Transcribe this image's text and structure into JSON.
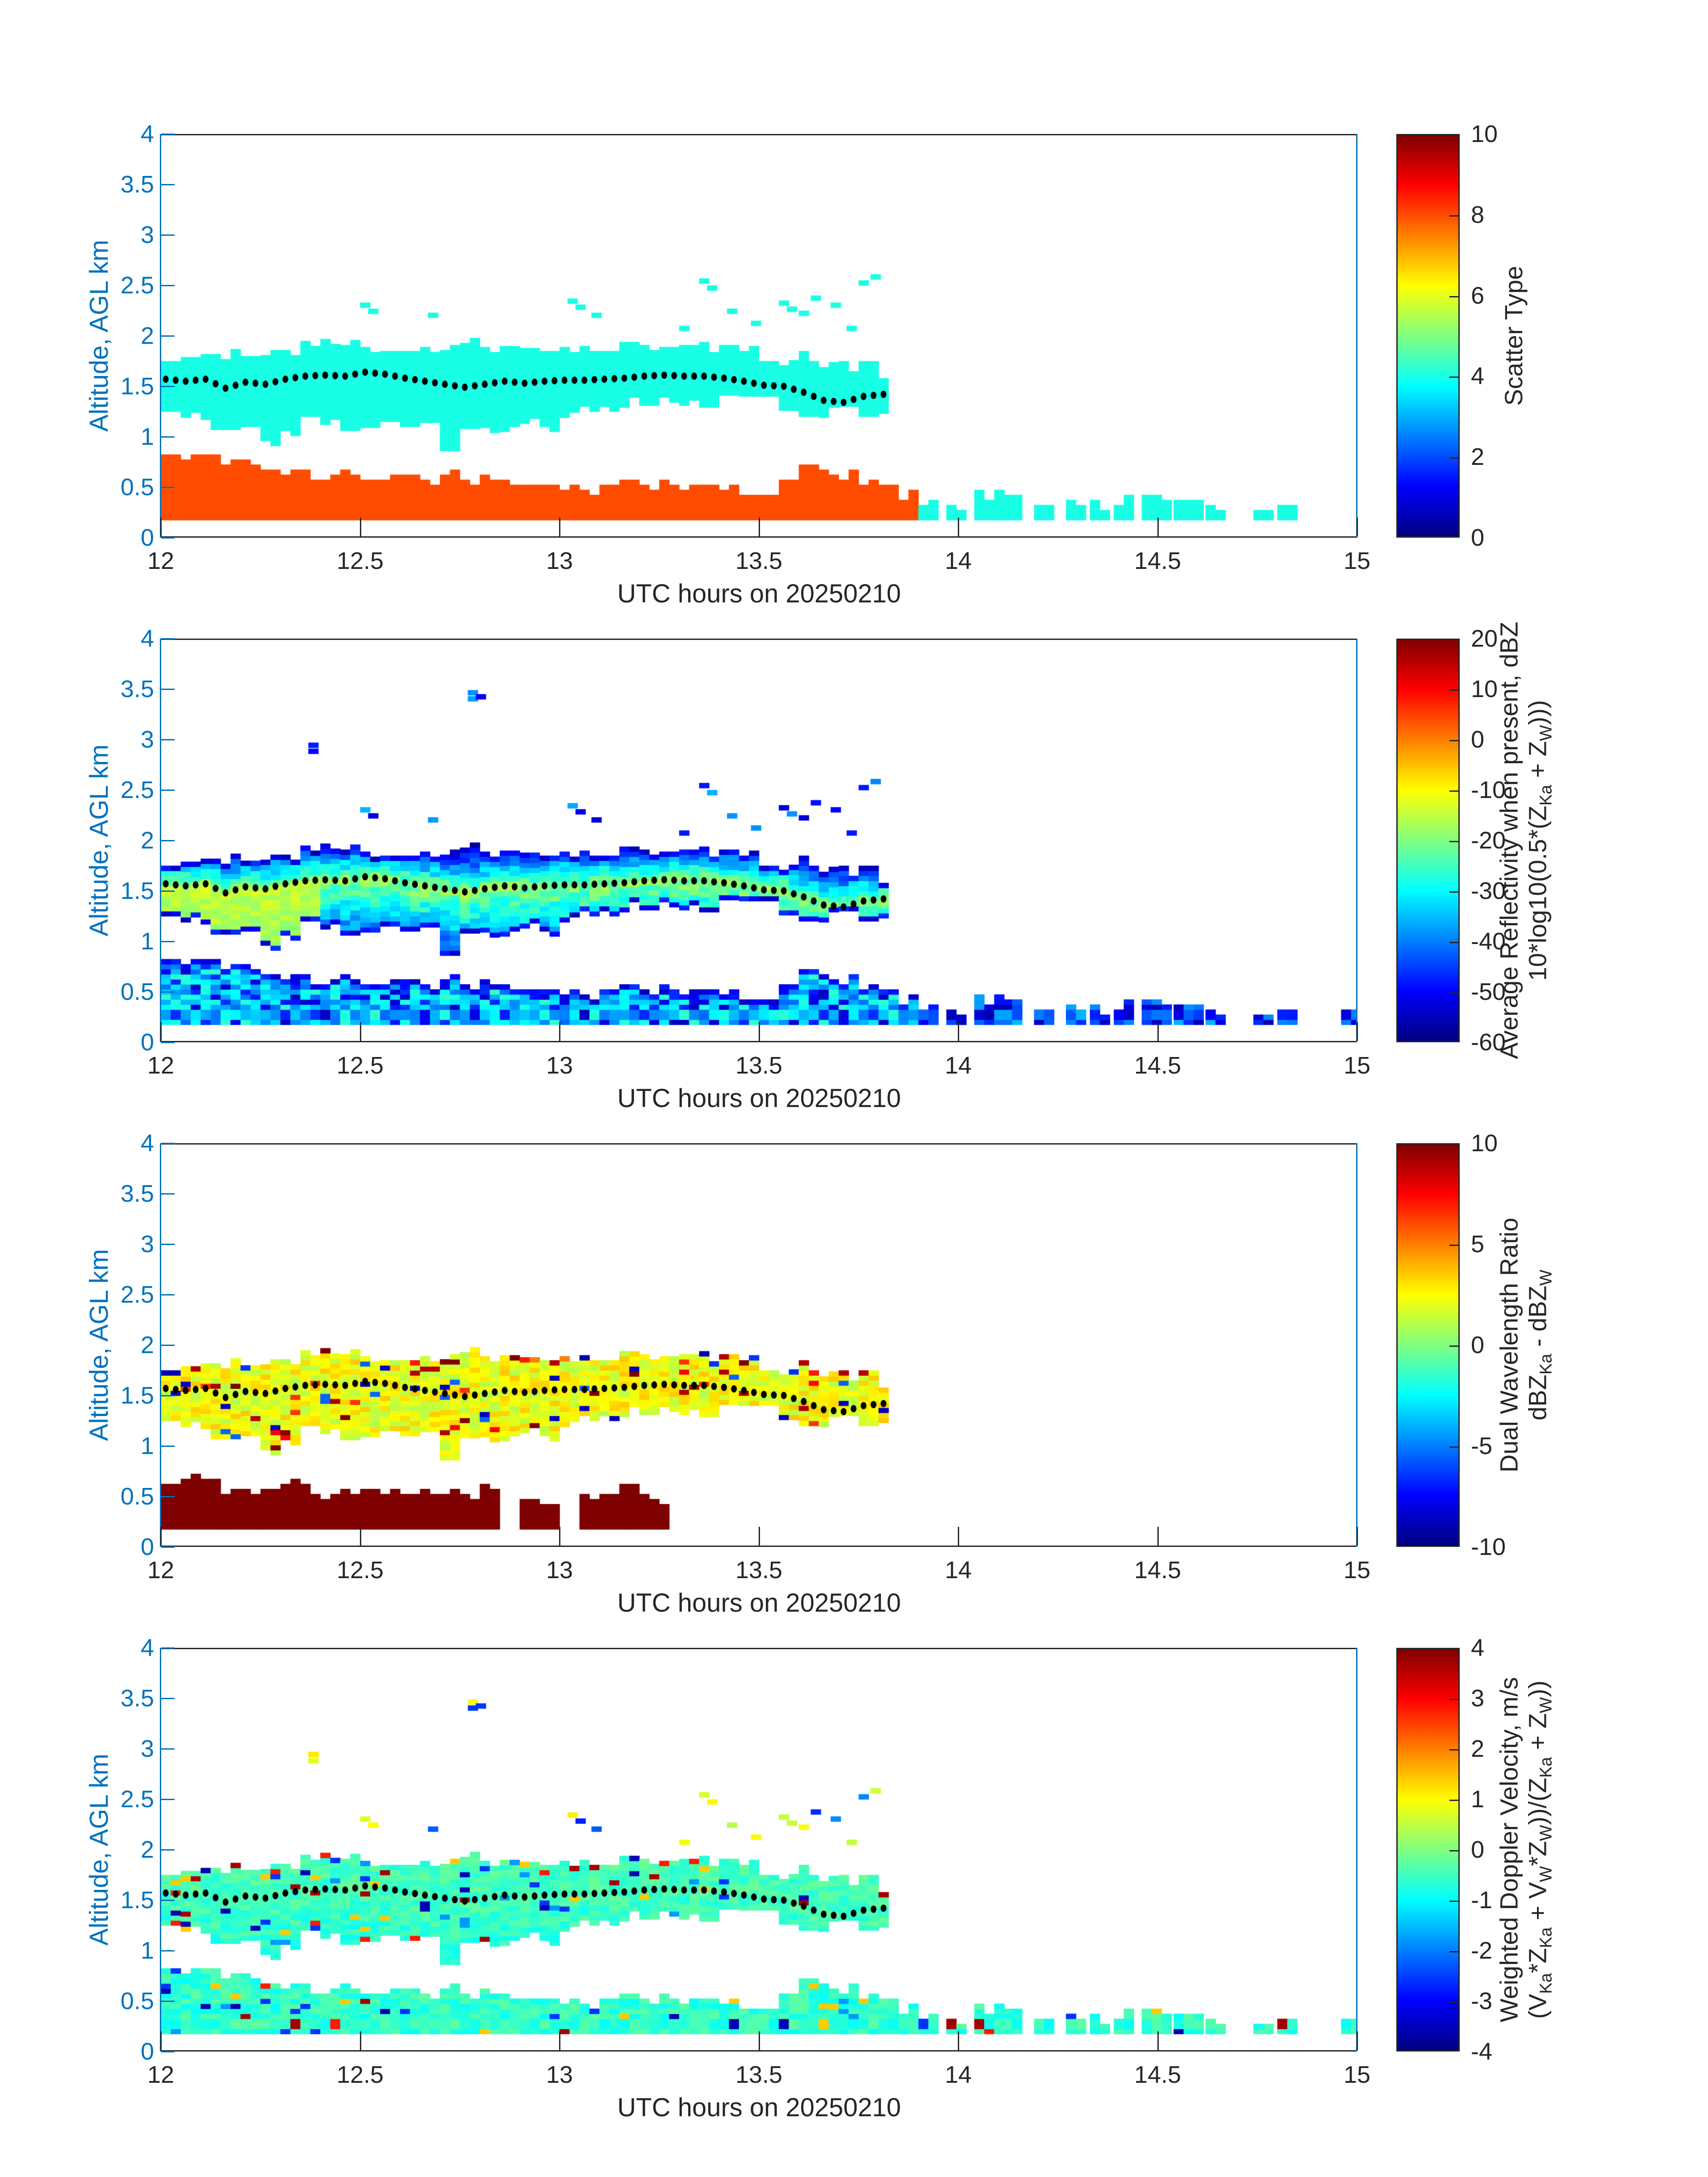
{
  "figure": {
    "background": "#ffffff",
    "xlabel": "UTC hours on 20250210",
    "ylabel": "Altitude, AGL km",
    "x_ticks": [
      12,
      12.5,
      13,
      13.5,
      14,
      14.5,
      15
    ],
    "x_tick_labels": [
      "12",
      "12.5",
      "13",
      "13.5",
      "14",
      "14.5",
      "15"
    ],
    "y_ticks": [
      0,
      0.5,
      1,
      1.5,
      2,
      2.5,
      3,
      3.5,
      4
    ],
    "y_tick_labels": [
      "0",
      "0.5",
      "1",
      "1.5",
      "2",
      "2.5",
      "3",
      "3.5",
      "4"
    ],
    "x_range": [
      12,
      15
    ],
    "y_range": [
      0,
      4
    ],
    "axis_color_y": "#0072BD",
    "axis_color_x": "#262626",
    "mean_line_color": "#000000",
    "colormap": "jet"
  },
  "chart_data": {
    "type": "heatmap",
    "x": {
      "label": "UTC hours on 20250210",
      "min": 12,
      "max": 15
    },
    "y": {
      "label": "Altitude, AGL km",
      "min": 0,
      "max": 4
    },
    "bins": {
      "dt_hours": 0.025,
      "dalt_km": 0.05,
      "envelope_dt_hours": 0.05
    },
    "cloud_band": {
      "t_start": 12.0,
      "t_end": 13.82,
      "top": [
        1.76,
        1.78,
        1.8,
        1.82,
        1.8,
        1.86,
        1.84,
        1.9,
        1.88,
        1.9,
        1.88,
        1.86,
        1.84,
        1.88,
        1.86,
        1.9,
        1.86,
        1.88,
        1.84,
        1.86,
        1.88,
        1.84,
        1.88,
        1.9,
        1.86,
        1.88,
        1.9,
        1.86,
        1.88,
        1.84,
        1.8,
        1.76,
        1.78,
        1.7,
        1.66,
        1.72,
        1.62,
        1.58
      ],
      "bottom": [
        1.3,
        1.24,
        1.12,
        1.02,
        1.1,
        0.96,
        1.06,
        1.2,
        1.12,
        1.06,
        1.14,
        1.2,
        1.1,
        1.14,
        0.86,
        1.08,
        1.04,
        1.1,
        1.18,
        1.1,
        1.24,
        1.3,
        1.3,
        1.34,
        1.36,
        1.34,
        1.36,
        1.34,
        1.36,
        1.4,
        1.4,
        1.26,
        1.2,
        1.24,
        1.3,
        1.2,
        1.28,
        1.34
      ]
    },
    "mean_line": {
      "t_start": 12.0,
      "t_end": 13.8,
      "dt": 0.05,
      "alt": [
        1.57,
        1.55,
        1.57,
        1.48,
        1.54,
        1.52,
        1.57,
        1.6,
        1.61,
        1.6,
        1.64,
        1.62,
        1.58,
        1.55,
        1.52,
        1.49,
        1.52,
        1.55,
        1.53,
        1.55,
        1.56,
        1.56,
        1.57,
        1.58,
        1.6,
        1.61,
        1.6,
        1.6,
        1.58,
        1.55,
        1.51,
        1.5,
        1.44,
        1.36,
        1.34,
        1.4,
        1.42
      ]
    },
    "surface_band": {
      "t_start": 12.0,
      "t_end": 13.9,
      "bottom": 0.175,
      "top": [
        0.8,
        0.8,
        0.78,
        0.74,
        0.7,
        0.66,
        0.62,
        0.6,
        0.58,
        0.6,
        0.55,
        0.55,
        0.58,
        0.55,
        0.6,
        0.57,
        0.55,
        0.52,
        0.5,
        0.48,
        0.45,
        0.47,
        0.5,
        0.55,
        0.52,
        0.48,
        0.5,
        0.55,
        0.5,
        0.45,
        0.42,
        0.55,
        0.75,
        0.62,
        0.6,
        0.55,
        0.5,
        0.42,
        0.35
      ]
    },
    "surface_band_dwr_panel": {
      "t_start": 12.0,
      "t_end": 13.275,
      "bottom": 0.175,
      "top": [
        0.62,
        0.72,
        0.65,
        0.55,
        0.5,
        0.55,
        0.6,
        0.55,
        0.48,
        0.52,
        0.55,
        0.5,
        0.52,
        0.55,
        0.5,
        0.52,
        0.55,
        null,
        0.45,
        0.42,
        null,
        0.48,
        0.52,
        0.62,
        0.5,
        0.35
      ]
    },
    "surface_blocks": [
      {
        "t0": 13.9,
        "t1": 13.95,
        "top": 0.32,
        "panels": [
          0,
          1,
          3
        ]
      },
      {
        "t0": 13.97,
        "t1": 14.01,
        "top": 0.28,
        "panels": [
          0,
          1,
          3
        ]
      },
      {
        "t0": 14.04,
        "t1": 14.1,
        "top": 0.4,
        "panels": [
          0,
          1,
          3
        ]
      },
      {
        "t0": 14.11,
        "t1": 14.16,
        "top": 0.34,
        "panels": [
          0,
          1,
          3
        ]
      },
      {
        "t0": 14.19,
        "t1": 14.23,
        "top": 0.28,
        "panels": [
          0,
          1,
          3
        ]
      },
      {
        "t0": 14.27,
        "t1": 14.3,
        "top": 0.34,
        "panels": [
          0,
          1,
          3
        ]
      },
      {
        "t0": 14.33,
        "t1": 14.36,
        "top": 0.28,
        "panels": [
          0,
          1,
          3
        ]
      },
      {
        "t0": 14.39,
        "t1": 14.42,
        "top": 0.34,
        "panels": [
          0,
          1,
          3
        ]
      },
      {
        "t0": 14.46,
        "t1": 14.52,
        "top": 0.4,
        "panels": [
          0,
          1,
          3
        ]
      },
      {
        "t0": 14.54,
        "t1": 14.6,
        "top": 0.36,
        "panels": [
          0,
          1,
          3
        ]
      },
      {
        "t0": 14.62,
        "t1": 14.65,
        "top": 0.28,
        "panels": [
          0,
          1,
          3
        ]
      },
      {
        "t0": 14.74,
        "t1": 14.78,
        "top": 0.32,
        "panels": [
          0,
          1,
          3
        ]
      },
      {
        "t0": 14.8,
        "t1": 14.85,
        "top": 0.32,
        "panels": [
          0,
          1,
          3
        ]
      },
      {
        "t0": 14.96,
        "t1": 14.99,
        "top": 0.3,
        "panels": [
          1,
          3
        ]
      }
    ],
    "high_pixels": {
      "common": [
        [
          12.5,
          2.28
        ],
        [
          12.52,
          2.22
        ],
        [
          12.67,
          2.18
        ],
        [
          13.02,
          2.32
        ],
        [
          13.04,
          2.26
        ],
        [
          13.08,
          2.18
        ],
        [
          13.3,
          2.05
        ],
        [
          13.35,
          2.52
        ],
        [
          13.37,
          2.45
        ],
        [
          13.42,
          2.22
        ],
        [
          13.48,
          2.1
        ],
        [
          13.55,
          2.3
        ],
        [
          13.57,
          2.24
        ],
        [
          13.6,
          2.2
        ],
        [
          13.63,
          2.35
        ],
        [
          13.68,
          2.28
        ],
        [
          13.72,
          2.05
        ],
        [
          13.75,
          2.5
        ],
        [
          13.78,
          2.56
        ]
      ],
      "upper": [
        [
          12.37,
          2.92
        ],
        [
          12.37,
          2.86
        ],
        [
          12.77,
          3.44
        ],
        [
          12.77,
          3.38
        ],
        [
          12.79,
          3.4
        ]
      ]
    },
    "panels": [
      {
        "id": "scatter-type",
        "colorbar": {
          "min": 0,
          "max": 10,
          "tick_values": [
            0,
            2,
            4,
            6,
            8,
            10
          ],
          "tick_labels": [
            "0",
            "2",
            "4",
            "6",
            "8",
            "10"
          ],
          "label_lines": [
            "Scatter Type"
          ]
        },
        "values": {
          "cloud_scatter_type": 4,
          "surface_scatter_type": 8
        }
      },
      {
        "id": "average-reflectivity",
        "colorbar": {
          "min": -60,
          "max": 20,
          "tick_values": [
            -60,
            -50,
            -40,
            -30,
            -20,
            -10,
            0,
            10,
            20
          ],
          "tick_labels": [
            "-60",
            "-50",
            "-40",
            "-30",
            "-20",
            "-10",
            "0",
            "10",
            "20"
          ],
          "label_lines": [
            "Average Reflectivity when present, dBZ",
            "10*log10(0.5*(Z_{Ka} + Z_{W})))"
          ]
        },
        "values": {
          "cloud_core_dbz": -19,
          "bright_core_dbz": -14.5,
          "edge_dbz": -46,
          "surface_dbz": -34,
          "sporadic_dbz": -42
        }
      },
      {
        "id": "dual-wavelength-ratio",
        "colorbar": {
          "min": -10,
          "max": 10,
          "tick_values": [
            -10,
            -5,
            0,
            5,
            10
          ],
          "tick_labels": [
            "-10",
            "-5",
            "0",
            "5",
            "10"
          ],
          "label_lines": [
            "Dual Wavelength Ratio",
            "dBZ_{Ka} - dBZ_{W}"
          ]
        },
        "values": {
          "cloud_dwr": 2.3,
          "surface_dwr": 10
        }
      },
      {
        "id": "weighted-doppler-velocity",
        "colorbar": {
          "min": -4,
          "max": 4,
          "tick_values": [
            -4,
            -3,
            -2,
            -1,
            0,
            1,
            2,
            3,
            4
          ],
          "tick_labels": [
            "-4",
            "-3",
            "-2",
            "-1",
            "0",
            "1",
            "2",
            "3",
            "4"
          ],
          "label_lines": [
            "Weighted Doppler Velocity, m/s",
            "(V_{Ka}*Z_{Ka} + V_{W}*Z_{W}))/(Z_{Ka} + Z_{W}))"
          ]
        },
        "values": {
          "mean_velocity_ms": -0.62
        }
      }
    ]
  }
}
